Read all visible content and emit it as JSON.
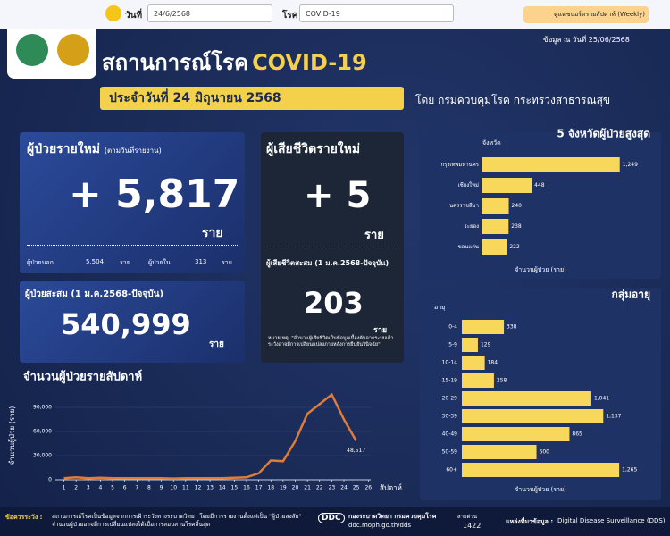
{
  "topbar": {
    "date_label": "วันที่",
    "date_value": "24/6/2568",
    "disease_label": "โรค",
    "disease_value": "COVID-19",
    "weekly_button": "ดูแดชบอร์ดรายสัปดาห์ (Weekly)"
  },
  "header": {
    "title": "สถานการณ์โรค",
    "title_disease": "COVID-19",
    "as_of": "ข้อมูล ณ วันที่",
    "as_of_date": "25/06/2568",
    "report_date": "ประจำวันที่  24 มิถุนายน 2568",
    "publisher": "โดย กรมควบคุมโรค  กระทรวงสาธารณสุข"
  },
  "new_cases": {
    "title": "ผู้ป่วยรายใหม่",
    "subtitle": "(ตามวันที่รายงาน)",
    "value": "+ 5,817",
    "unit": "ราย",
    "outpatient_label": "ผู้ป่วยนอก",
    "outpatient_value": "5,504",
    "outpatient_unit": "ราย",
    "inpatient_label": "ผู้ป่วยใน",
    "inpatient_value": "313",
    "inpatient_unit": "ราย"
  },
  "cumulative": {
    "title": "ผู้ป่วยสะสม (1 ม.ค.2568-ปัจจุบัน)",
    "value": "540,999",
    "unit": "ราย"
  },
  "deaths": {
    "title": "ผู้เสียชีวิตรายใหม่",
    "value": "+ 5",
    "unit": "ราย",
    "cumulative_title": "ผู้เสียชีวิตสะสม (1 ม.ค.2568-ปัจจุบัน)",
    "cumulative_value": "203",
    "cumulative_unit": "ราย",
    "note": "หมายเหตุ: \"จำนวนผู้เสียชีวิตเป็นข้อมูลเบื้องต้นจากระบบเฝ้าระวังอาจมีการเปลี่ยนแปลงภายหลังการยืนยันวินิจฉัย\""
  },
  "footer": {
    "caution_label": "ข้อควรระวัง :",
    "caution_text": "สถานการณ์โรคเป็นข้อมูลจากการเฝ้าระวังทางระบาดวิทยา โดยมีการรายงานตั้งแต่เป็น \"ผู้ป่วยสงสัย\" จำนวนผู้ป่วยอาจมีการเปลี่ยนแปลงได้เมื่อการสอบสวนโรคสิ้นสุด",
    "ddc_logo": "DDC",
    "org": "กองระบาดวิทยา กรมควบคุมโรค",
    "url": "ddc.moph.go.th/dds",
    "hotline_label": "สายด่วน",
    "hotline": "1422",
    "source_label": "แหล่งที่มาข้อมูล :",
    "source": "Digital Disease Surveillance (DDS)"
  },
  "chart_data": [
    {
      "type": "line",
      "title": "จำนวนผู้ป่วยรายสัปดาห์",
      "y_label": "จำนวนผู้ป่วย (ราย)",
      "x_label": "สัปดาห์",
      "color": "#e07b39",
      "x": [
        1,
        2,
        3,
        4,
        5,
        6,
        7,
        8,
        9,
        10,
        11,
        12,
        13,
        14,
        15,
        16,
        17,
        18,
        19,
        20,
        21,
        22,
        23,
        24,
        25
      ],
      "values": [
        2000,
        3000,
        2000,
        2500,
        2000,
        2000,
        2000,
        2000,
        2000,
        1500,
        2000,
        2000,
        2000,
        2000,
        2500,
        3000,
        8000,
        24000,
        23000,
        48000,
        82000,
        94000,
        106000,
        75000,
        48517
      ],
      "value_labels": [
        null,
        null,
        null,
        null,
        null,
        null,
        null,
        null,
        null,
        null,
        null,
        null,
        null,
        null,
        null,
        null,
        null,
        null,
        null,
        null,
        null,
        null,
        null,
        null,
        "48,517"
      ],
      "xlim": [
        0.3,
        26.2
      ],
      "xticks": [
        1,
        2,
        3,
        4,
        5,
        6,
        7,
        8,
        9,
        10,
        11,
        12,
        13,
        14,
        15,
        16,
        17,
        18,
        19,
        20,
        21,
        22,
        23,
        24,
        25,
        26
      ],
      "ylim": [
        0,
        110000
      ],
      "yticks": [
        0,
        {
          "value": 30000,
          "label": "30,000"
        },
        {
          "value": 60000,
          "label": "60,000"
        },
        {
          "value": 90000,
          "label": "90,000"
        }
      ]
    },
    {
      "type": "hbar",
      "title": "5 จังหวัดผู้ป่วยสูงสุด",
      "y_label": "จังหวัด",
      "x_label": "จำนวนผู้ป่วย (ราย)",
      "color": "#f7d85a",
      "categories": [
        "กรุงเทพมหานคร",
        "เชียงใหม่",
        "นครราชสีมา",
        "ระยอง",
        "ขอนแก่น"
      ],
      "values": [
        1249,
        448,
        240,
        238,
        222
      ],
      "value_labels": [
        "1,249",
        "448",
        "240",
        "238",
        "222"
      ],
      "xlim": [
        0,
        1300
      ]
    },
    {
      "type": "hbar",
      "title": "กลุ่มอายุ",
      "y_label": "อายุ",
      "x_label": "จำนวนผู้ป่วย (ราย)",
      "color": "#f7d85a",
      "categories": [
        "0-4",
        "5-9",
        "10-14",
        "15-19",
        "20-29",
        "30-39",
        "40-49",
        "50-59",
        "60+"
      ],
      "values": [
        338,
        129,
        184,
        258,
        1041,
        1137,
        865,
        600,
        1265
      ],
      "value_labels": [
        "338",
        "129",
        "184",
        "258",
        "1,041",
        "1,137",
        "865",
        "600",
        "1,265"
      ],
      "xlim": [
        0,
        1300
      ]
    }
  ]
}
